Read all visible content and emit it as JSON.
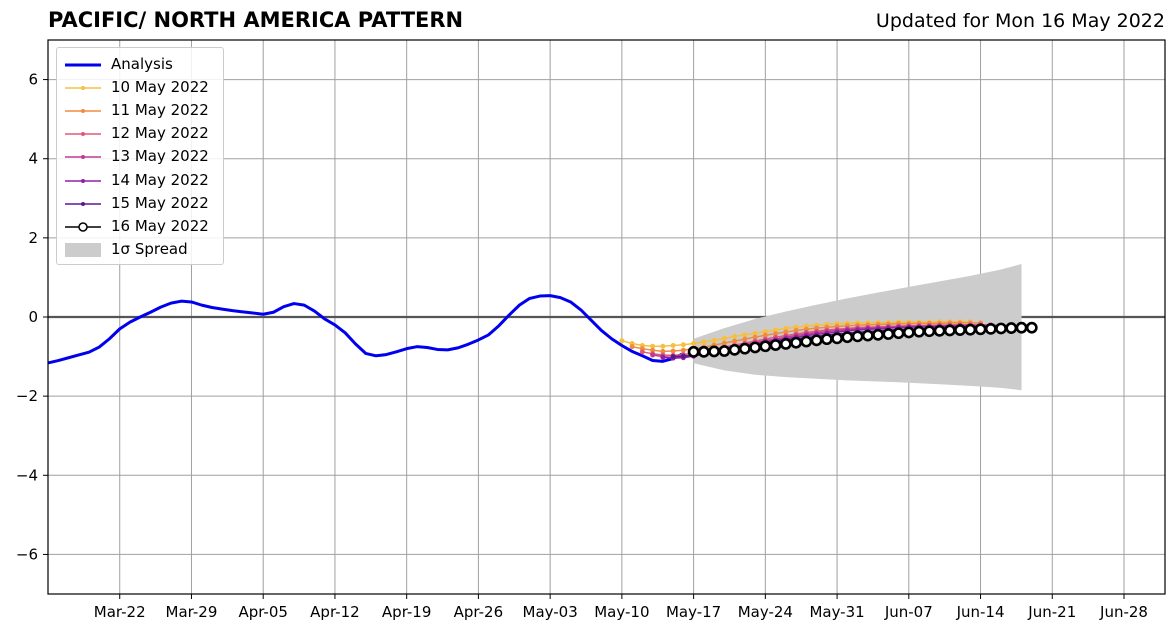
{
  "header": {
    "title": "PACIFIC/ NORTH AMERICA PATTERN",
    "updated": "Updated for Mon 16 May 2022"
  },
  "chart_data": {
    "type": "line",
    "title": "PACIFIC/ NORTH AMERICA PATTERN",
    "xlabel": "",
    "ylabel": "",
    "x_axis_type": "date",
    "xlim": [
      "2022-03-15",
      "2022-07-02"
    ],
    "ylim": [
      -7,
      7
    ],
    "x_ticks": [
      "2022-03-22",
      "2022-03-29",
      "2022-04-05",
      "2022-04-12",
      "2022-04-19",
      "2022-04-26",
      "2022-05-03",
      "2022-05-10",
      "2022-05-17",
      "2022-05-24",
      "2022-05-31",
      "2022-06-07",
      "2022-06-14",
      "2022-06-21",
      "2022-06-28"
    ],
    "x_tick_labels": [
      "Mar-22",
      "Mar-29",
      "Apr-05",
      "Apr-12",
      "Apr-19",
      "Apr-26",
      "May-03",
      "May-10",
      "May-17",
      "May-24",
      "May-31",
      "Jun-07",
      "Jun-14",
      "Jun-21",
      "Jun-28"
    ],
    "y_ticks": [
      -6,
      -4,
      -2,
      0,
      2,
      4,
      6
    ],
    "y_tick_labels": [
      "−6",
      "−4",
      "−2",
      "0",
      "2",
      "4",
      "6"
    ],
    "grid": true,
    "zero_line": true,
    "legend_position": "top-left",
    "series": [
      {
        "name": "Analysis",
        "color": "#0000ee",
        "x": [
          "2022-03-15",
          "2022-03-16",
          "2022-03-17",
          "2022-03-18",
          "2022-03-19",
          "2022-03-20",
          "2022-03-21",
          "2022-03-22",
          "2022-03-23",
          "2022-03-24",
          "2022-03-25",
          "2022-03-26",
          "2022-03-27",
          "2022-03-28",
          "2022-03-29",
          "2022-03-30",
          "2022-03-31",
          "2022-04-01",
          "2022-04-02",
          "2022-04-03",
          "2022-04-04",
          "2022-04-05",
          "2022-04-06",
          "2022-04-07",
          "2022-04-08",
          "2022-04-09",
          "2022-04-10",
          "2022-04-11",
          "2022-04-12",
          "2022-04-13",
          "2022-04-14",
          "2022-04-15",
          "2022-04-16",
          "2022-04-17",
          "2022-04-18",
          "2022-04-19",
          "2022-04-20",
          "2022-04-21",
          "2022-04-22",
          "2022-04-23",
          "2022-04-24",
          "2022-04-25",
          "2022-04-26",
          "2022-04-27",
          "2022-04-28",
          "2022-04-29",
          "2022-04-30",
          "2022-05-01",
          "2022-05-02",
          "2022-05-03",
          "2022-05-04",
          "2022-05-05",
          "2022-05-06",
          "2022-05-07",
          "2022-05-08",
          "2022-05-09",
          "2022-05-10",
          "2022-05-11",
          "2022-05-12",
          "2022-05-13",
          "2022-05-14",
          "2022-05-15",
          "2022-05-16"
        ],
        "y": [
          -1.16,
          -1.1,
          -1.03,
          -0.96,
          -0.89,
          -0.76,
          -0.55,
          -0.3,
          -0.13,
          0.0,
          0.12,
          0.25,
          0.35,
          0.4,
          0.38,
          0.3,
          0.24,
          0.2,
          0.16,
          0.13,
          0.1,
          0.07,
          0.12,
          0.26,
          0.34,
          0.3,
          0.15,
          -0.05,
          -0.2,
          -0.4,
          -0.68,
          -0.92,
          -0.98,
          -0.95,
          -0.88,
          -0.8,
          -0.75,
          -0.77,
          -0.82,
          -0.83,
          -0.78,
          -0.69,
          -0.58,
          -0.45,
          -0.22,
          0.05,
          0.3,
          0.47,
          0.53,
          0.54,
          0.49,
          0.38,
          0.18,
          -0.08,
          -0.34,
          -0.55,
          -0.72,
          -0.87,
          -0.98,
          -1.1,
          -1.12,
          -1.05,
          -0.92
        ]
      },
      {
        "name": "10 May 2022",
        "color": "#f5c040",
        "x_start": "2022-05-10",
        "y": [
          -0.6,
          -0.67,
          -0.72,
          -0.74,
          -0.74,
          -0.72,
          -0.7,
          -0.67,
          -0.63,
          -0.59,
          -0.54,
          -0.49,
          -0.45,
          -0.41,
          -0.37,
          -0.33,
          -0.29,
          -0.26,
          -0.23,
          -0.21,
          -0.19,
          -0.17,
          -0.16,
          -0.15,
          -0.15,
          -0.14,
          -0.14,
          -0.13,
          -0.13,
          -0.13,
          -0.13,
          -0.12,
          -0.12,
          -0.12,
          -0.12
        ]
      },
      {
        "name": "11 May 2022",
        "color": "#f08c40",
        "x_start": "2022-05-11",
        "y": [
          -0.75,
          -0.8,
          -0.84,
          -0.87,
          -0.86,
          -0.84,
          -0.8,
          -0.76,
          -0.71,
          -0.66,
          -0.61,
          -0.56,
          -0.51,
          -0.46,
          -0.42,
          -0.38,
          -0.34,
          -0.31,
          -0.28,
          -0.26,
          -0.24,
          -0.22,
          -0.21,
          -0.2,
          -0.19,
          -0.18,
          -0.17,
          -0.17,
          -0.16,
          -0.16,
          -0.16,
          -0.15,
          -0.15,
          -0.15,
          -0.15
        ]
      },
      {
        "name": "12 May 2022",
        "color": "#e05878",
        "x_start": "2022-05-12",
        "y": [
          -0.88,
          -0.93,
          -0.96,
          -0.97,
          -0.95,
          -0.91,
          -0.87,
          -0.82,
          -0.76,
          -0.71,
          -0.66,
          -0.61,
          -0.56,
          -0.51,
          -0.47,
          -0.43,
          -0.39,
          -0.36,
          -0.33,
          -0.31,
          -0.29,
          -0.27,
          -0.26,
          -0.25,
          -0.24,
          -0.23,
          -0.22,
          -0.22,
          -0.21,
          -0.21,
          -0.2,
          -0.2,
          -0.2,
          -0.2,
          -0.2
        ]
      },
      {
        "name": "13 May 2022",
        "color": "#c03c90",
        "x_start": "2022-05-13",
        "y": [
          -0.96,
          -1.0,
          -1.02,
          -1.0,
          -0.96,
          -0.91,
          -0.86,
          -0.8,
          -0.75,
          -0.7,
          -0.65,
          -0.6,
          -0.56,
          -0.51,
          -0.47,
          -0.43,
          -0.4,
          -0.37,
          -0.34,
          -0.32,
          -0.3,
          -0.28,
          -0.27,
          -0.26,
          -0.25,
          -0.24,
          -0.23,
          -0.23,
          -0.22,
          -0.22,
          -0.21,
          -0.21,
          -0.21,
          -0.21,
          -0.21
        ]
      },
      {
        "name": "14 May 2022",
        "color": "#9020a8",
        "x_start": "2022-05-14",
        "y": [
          -1.02,
          -1.04,
          -1.03,
          -0.99,
          -0.94,
          -0.88,
          -0.83,
          -0.78,
          -0.73,
          -0.68,
          -0.63,
          -0.59,
          -0.55,
          -0.51,
          -0.47,
          -0.44,
          -0.41,
          -0.38,
          -0.35,
          -0.33,
          -0.31,
          -0.3,
          -0.28,
          -0.27,
          -0.26,
          -0.25,
          -0.25,
          -0.24,
          -0.24,
          -0.23,
          -0.23,
          -0.23,
          -0.22,
          -0.22,
          -0.22
        ]
      },
      {
        "name": "15 May 2022",
        "color": "#5a1890",
        "x_start": "2022-05-15",
        "y": [
          -1.0,
          -0.99,
          -0.96,
          -0.92,
          -0.87,
          -0.83,
          -0.78,
          -0.74,
          -0.7,
          -0.66,
          -0.62,
          -0.58,
          -0.55,
          -0.52,
          -0.49,
          -0.46,
          -0.43,
          -0.41,
          -0.39,
          -0.37,
          -0.35,
          -0.33,
          -0.32,
          -0.31,
          -0.3,
          -0.29,
          -0.28,
          -0.27,
          -0.27,
          -0.26,
          -0.26,
          -0.25,
          -0.25,
          -0.25,
          -0.25
        ]
      },
      {
        "name": "16 May 2022",
        "color": "#000000",
        "x_start": "2022-05-17",
        "y": [
          -0.88,
          -0.88,
          -0.87,
          -0.86,
          -0.83,
          -0.8,
          -0.77,
          -0.74,
          -0.71,
          -0.68,
          -0.65,
          -0.62,
          -0.59,
          -0.56,
          -0.54,
          -0.51,
          -0.49,
          -0.47,
          -0.45,
          -0.43,
          -0.41,
          -0.39,
          -0.37,
          -0.36,
          -0.35,
          -0.34,
          -0.33,
          -0.32,
          -0.31,
          -0.3,
          -0.29,
          -0.28,
          -0.27,
          -0.27
        ]
      }
    ],
    "spread": {
      "name": "1σ Spread",
      "color": "#cccccc",
      "x_start": "2022-05-17",
      "x": [
        "2022-05-17",
        "2022-05-20",
        "2022-05-23",
        "2022-05-26",
        "2022-05-29",
        "2022-06-01",
        "2022-06-04",
        "2022-06-07",
        "2022-06-10",
        "2022-06-13",
        "2022-06-16",
        "2022-06-18"
      ],
      "upper": [
        -0.55,
        -0.28,
        -0.05,
        0.14,
        0.31,
        0.47,
        0.62,
        0.76,
        0.9,
        1.04,
        1.2,
        1.34
      ],
      "lower": [
        -1.17,
        -1.35,
        -1.46,
        -1.52,
        -1.56,
        -1.6,
        -1.63,
        -1.66,
        -1.7,
        -1.74,
        -1.79,
        -1.85
      ]
    }
  },
  "legend": {
    "items": [
      {
        "label": "Analysis",
        "style": "line",
        "color": "#0000ee"
      },
      {
        "label": "10 May 2022",
        "style": "line-dot",
        "color": "#f5c040"
      },
      {
        "label": "11 May 2022",
        "style": "line-dot",
        "color": "#f08c40"
      },
      {
        "label": "12 May 2022",
        "style": "line-dot",
        "color": "#e05878"
      },
      {
        "label": "13 May 2022",
        "style": "line-dot",
        "color": "#c03c90"
      },
      {
        "label": "14 May 2022",
        "style": "line-dot",
        "color": "#9020a8"
      },
      {
        "label": "15 May 2022",
        "style": "line-dot",
        "color": "#5a1890"
      },
      {
        "label": "16 May 2022",
        "style": "line-circle",
        "color": "#000000"
      },
      {
        "label": "1σ Spread",
        "style": "patch",
        "color": "#cccccc"
      }
    ]
  }
}
